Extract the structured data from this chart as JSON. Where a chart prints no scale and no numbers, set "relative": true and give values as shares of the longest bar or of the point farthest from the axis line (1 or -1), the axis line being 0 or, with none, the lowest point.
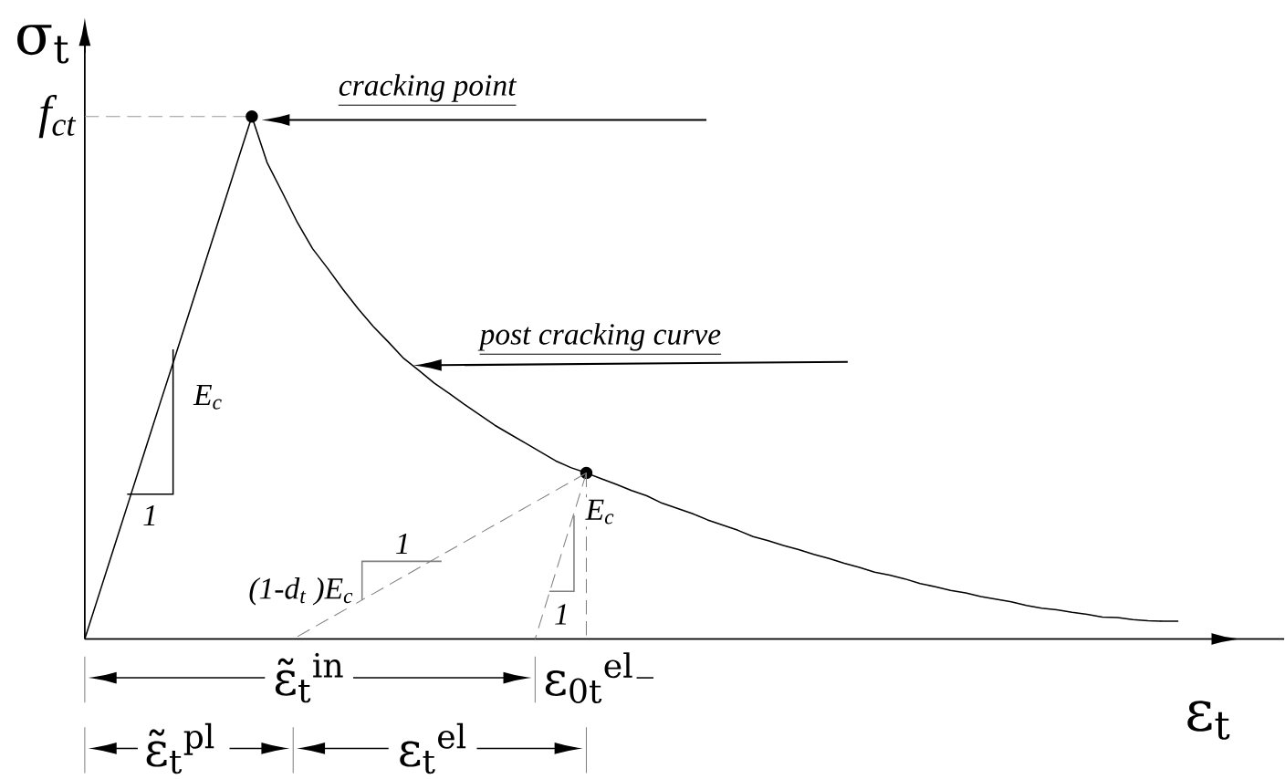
{
  "chart_data": {
    "type": "line",
    "relative": true,
    "xlabel": "ε$_{t}$",
    "ylabel": "σ$_{t}$",
    "categories": [
      null,
      null,
      null,
      null,
      null,
      null,
      null,
      null,
      null,
      null,
      null,
      null,
      null,
      null,
      null,
      null,
      null,
      null,
      null,
      null,
      null,
      null,
      null,
      null,
      null,
      null,
      null,
      null,
      null,
      null,
      null,
      null,
      null,
      null,
      null,
      null,
      null,
      null,
      null,
      null,
      null,
      null,
      null,
      null,
      null,
      null,
      null,
      null,
      null,
      null,
      null,
      null,
      null,
      null,
      null,
      null,
      null,
      null,
      null,
      null,
      null,
      null,
      null,
      null,
      null,
      null,
      null,
      null,
      null,
      null,
      null,
      null,
      null
    ],
    "series": [
      {
        "color": "#000000",
        "line_style": "solid",
        "marker": "none",
        "values": [
          0,
          0.091,
          0.182,
          0.273,
          0.364,
          0.455,
          0.545,
          0.636,
          0.727,
          0.818,
          0.909,
          1,
          0.912,
          0.855,
          0.797,
          0.747,
          0.709,
          0.669,
          0.632,
          0.598,
          0.568,
          0.537,
          0.514,
          0.49,
          0.47,
          0.449,
          0.429,
          0.409,
          0.392,
          0.375,
          0.358,
          0.341,
          0.328,
          0.318,
          0.307,
          0.296,
          0.284,
          0.274,
          0.26,
          0.25,
          0.24,
          0.228,
          0.218,
          0.208,
          0.196,
          0.188,
          0.179,
          0.171,
          0.162,
          0.154,
          0.145,
          0.137,
          0.128,
          0.122,
          0.115,
          0.106,
          0.1,
          0.093,
          0.088,
          0.081,
          0.076,
          0.071,
          0.064,
          0.059,
          0.056,
          0.051,
          0.047,
          0.042,
          0.041,
          0.037,
          0.035,
          0.034,
          0.034
        ]
      }
    ],
    "ref_lines": [
      {
        "axis": "y",
        "value": 1,
        "label": "f$_{ct}$",
        "color": "#999999",
        "line_style": "dashed"
      }
    ],
    "annotations": [
      "cracking point",
      "post cracking curve",
      "E$_{c}$",
      "1",
      "(1-d$_{t}$ )E$_{c}$",
      "1",
      "E$_{c}$",
      "1",
      "ε̃$_{t}$$^{in}$",
      "ε$_{0t}$$^{el}$",
      "ε̃$_{t}$$^{pl}$",
      "ε$_{t}$$^{el}$"
    ]
  }
}
